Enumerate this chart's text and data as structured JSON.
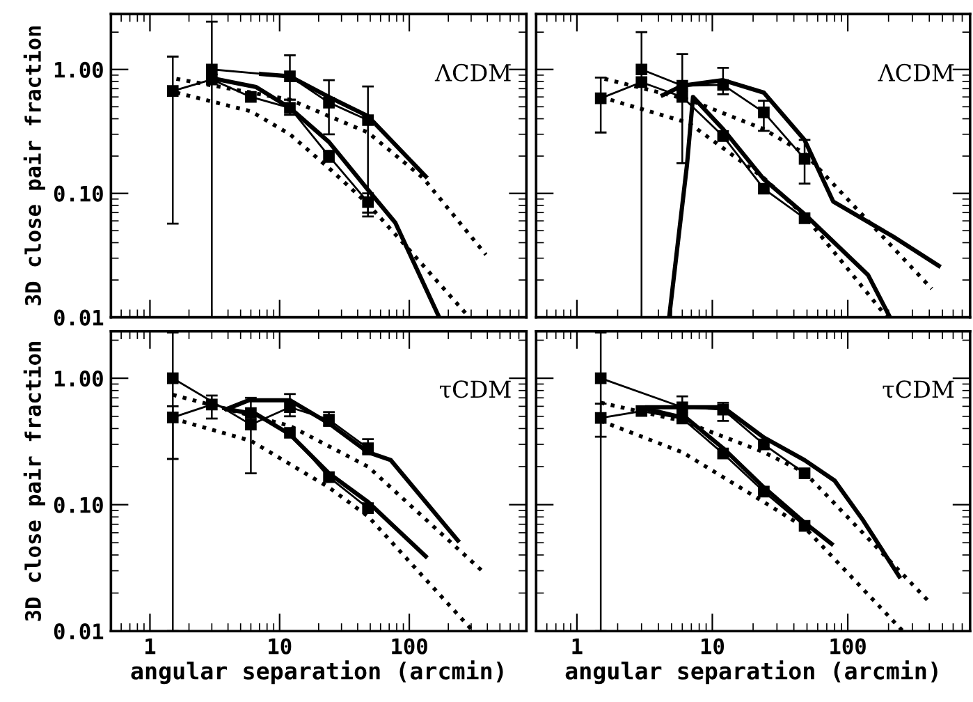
{
  "chart_data": [
    {
      "type": "line",
      "ylabel": "3D close pair fraction",
      "annotations": [
        "ΛCDM"
      ],
      "log": "xy",
      "xlim": [
        0.5,
        800
      ],
      "ylim": [
        0.01,
        2.8
      ],
      "xticks": [
        {
          "value": 1,
          "label": null
        },
        {
          "value": 10,
          "label": null
        },
        {
          "value": 100,
          "label": null
        }
      ],
      "yticks": [
        {
          "value": 0.01,
          "label": "0.01"
        },
        {
          "value": 0.1,
          "label": "0.10"
        },
        {
          "value": 1,
          "label": "1.00"
        }
      ],
      "tick_labels": "y",
      "grid": false,
      "legend": false,
      "series": [
        {
          "color": "#000000",
          "marker": "square",
          "x": [
            1.5,
            3,
            6,
            12,
            24,
            48
          ],
          "values": [
            0.67,
            0.83,
            0.6,
            0.49,
            0.2,
            0.085
          ],
          "errors": [
            [
              0.057,
              1.27
            ],
            null,
            null,
            [
              0.43,
              0.57
            ],
            [
              0.18,
              0.22
            ],
            [
              0.07,
              0.1
            ]
          ]
        },
        {
          "color": "#000000",
          "marker": "square",
          "x": [
            3,
            12,
            24,
            48
          ],
          "values": [
            1.0,
            0.88,
            0.54,
            0.39
          ],
          "errors": [
            [
              0.01,
              2.43
            ],
            [
              0.57,
              1.3
            ],
            [
              0.3,
              0.82
            ],
            [
              0.065,
              0.73
            ]
          ]
        },
        {
          "color": "#000000",
          "marker": "none",
          "x": [
            7.2,
            12,
            24,
            48,
            134
          ],
          "values": [
            0.92,
            0.88,
            0.6,
            0.42,
            0.137
          ]
        },
        {
          "color": "#000000",
          "marker": "none",
          "x": [
            3,
            6.6,
            12,
            24,
            48,
            78,
            170
          ],
          "values": [
            0.85,
            0.72,
            0.49,
            0.26,
            0.107,
            0.058,
            0.01
          ]
        },
        {
          "color": "#000000",
          "marker": "none",
          "line_style": "dotted",
          "x": [
            1.6,
            12,
            48,
            128,
            390
          ],
          "values": [
            0.84,
            0.57,
            0.31,
            0.133,
            0.032
          ]
        },
        {
          "color": "#000000",
          "marker": "none",
          "line_style": "dotted",
          "x": [
            1.6,
            6,
            12,
            24,
            48,
            100,
            290
          ],
          "values": [
            0.65,
            0.46,
            0.3,
            0.16,
            0.082,
            0.035,
            0.01
          ]
        }
      ]
    },
    {
      "type": "line",
      "annotations": [
        "ΛCDM"
      ],
      "log": "xy",
      "xlim": [
        0.5,
        800
      ],
      "ylim": [
        0.01,
        2.8
      ],
      "xticks": [
        {
          "value": 1,
          "label": null
        },
        {
          "value": 10,
          "label": null
        },
        {
          "value": 100,
          "label": null
        }
      ],
      "yticks": [
        {
          "value": 0.01,
          "label": null
        },
        {
          "value": 0.1,
          "label": null
        },
        {
          "value": 1,
          "label": null
        }
      ],
      "tick_labels": false,
      "grid": false,
      "legend": false,
      "series": [
        {
          "color": "#000000",
          "marker": "square",
          "x": [
            1.5,
            3,
            6,
            12,
            24,
            48
          ],
          "values": [
            0.585,
            0.79,
            0.6,
            0.29,
            0.109,
            0.063
          ],
          "errors": [
            [
              0.31,
              0.86
            ],
            null,
            null,
            null,
            null,
            null
          ]
        },
        {
          "color": "#000000",
          "marker": "square",
          "x": [
            3,
            6,
            12,
            24,
            48
          ],
          "values": [
            1.0,
            0.74,
            0.75,
            0.45,
            0.19
          ],
          "errors": [
            [
              0.01,
              2.0
            ],
            [
              0.175,
              1.33
            ],
            [
              0.63,
              1.03
            ],
            [
              0.32,
              0.56
            ],
            [
              0.12,
              0.27
            ]
          ]
        },
        {
          "color": "#000000",
          "marker": "none",
          "x": [
            4.3,
            6,
            12,
            24,
            48,
            78,
            215,
            470
          ],
          "values": [
            0.62,
            0.74,
            0.82,
            0.65,
            0.27,
            0.086,
            0.045,
            0.026
          ]
        },
        {
          "color": "#000000",
          "marker": "none",
          "x": [
            4.8,
            6.5,
            7.2,
            12,
            24,
            48,
            141,
            205
          ],
          "values": [
            0.01,
            0.17,
            0.6,
            0.33,
            0.13,
            0.068,
            0.022,
            0.01
          ]
        },
        {
          "color": "#000000",
          "marker": "none",
          "line_style": "dotted",
          "x": [
            1.6,
            6.7,
            24,
            48,
            417
          ],
          "values": [
            0.84,
            0.57,
            0.33,
            0.21,
            0.017
          ]
        },
        {
          "color": "#000000",
          "marker": "none",
          "line_style": "dotted",
          "x": [
            1.5,
            6.7,
            24,
            48,
            195
          ],
          "values": [
            0.6,
            0.37,
            0.133,
            0.066,
            0.01
          ]
        }
      ]
    },
    {
      "type": "line",
      "xlabel": "angular separation (arcmin)",
      "ylabel": "3D close pair fraction",
      "annotations": [
        "τCDM"
      ],
      "log": "xy",
      "xlim": [
        0.5,
        800
      ],
      "ylim": [
        0.01,
        2.35
      ],
      "xticks": [
        1,
        10,
        100
      ],
      "yticks": [
        {
          "value": 0.01,
          "label": "0.01"
        },
        {
          "value": 0.1,
          "label": "0.10"
        },
        {
          "value": 1,
          "label": "1.00"
        }
      ],
      "grid": false,
      "legend": false,
      "series": [
        {
          "color": "#000000",
          "marker": "square",
          "x": [
            1.5,
            3,
            6,
            12,
            24,
            48
          ],
          "values": [
            0.49,
            0.62,
            0.53,
            0.37,
            0.165,
            0.094
          ],
          "errors": [
            [
              0.23,
              0.6
            ],
            [
              0.48,
              0.73
            ],
            null,
            null,
            null,
            null
          ]
        },
        {
          "color": "#000000",
          "marker": "square",
          "x": [
            1.5,
            6,
            12,
            24,
            48
          ],
          "values": [
            1.0,
            0.43,
            0.59,
            0.47,
            0.28
          ],
          "errors": [
            [
              0.01,
              2.3
            ],
            [
              0.177,
              0.7
            ],
            [
              0.5,
              0.75
            ],
            [
              0.42,
              0.54
            ],
            [
              0.25,
              0.33
            ]
          ]
        },
        {
          "color": "#000000",
          "marker": "none",
          "x": [
            3.9,
            5.8,
            12,
            24,
            48,
            72,
            237
          ],
          "values": [
            0.57,
            0.67,
            0.67,
            0.44,
            0.26,
            0.225,
            0.052
          ]
        },
        {
          "color": "#000000",
          "marker": "none",
          "x": [
            3.9,
            6.6,
            12,
            24,
            48,
            134
          ],
          "values": [
            0.57,
            0.52,
            0.36,
            0.177,
            0.105,
            0.039
          ]
        },
        {
          "color": "#000000",
          "marker": "none",
          "line_style": "dotted",
          "x": [
            1.5,
            12,
            48,
            377
          ],
          "values": [
            0.74,
            0.42,
            0.2,
            0.029
          ]
        },
        {
          "color": "#000000",
          "marker": "none",
          "line_style": "dotted",
          "x": [
            1.5,
            6,
            24,
            48,
            310
          ],
          "values": [
            0.48,
            0.32,
            0.137,
            0.081,
            0.01
          ]
        }
      ]
    },
    {
      "type": "line",
      "xlabel": "angular separation (arcmin)",
      "annotations": [
        "τCDM"
      ],
      "log": "xy",
      "xlim": [
        0.5,
        800
      ],
      "ylim": [
        0.01,
        2.35
      ],
      "xticks": [
        1,
        10,
        100
      ],
      "yticks": [
        {
          "value": 0.01,
          "label": null
        },
        {
          "value": 0.1,
          "label": null
        },
        {
          "value": 1,
          "label": null
        }
      ],
      "tick_labels": "x",
      "grid": false,
      "legend": false,
      "series": [
        {
          "color": "#000000",
          "marker": "square",
          "x": [
            1.5,
            3,
            6,
            12,
            24,
            48
          ],
          "values": [
            0.485,
            0.55,
            0.48,
            0.254,
            0.127,
            0.068
          ],
          "errors": [
            [
              0.345,
              0.63
            ],
            null,
            null,
            null,
            null,
            null
          ]
        },
        {
          "color": "#000000",
          "marker": "square",
          "x": [
            1.5,
            6,
            12,
            24,
            48
          ],
          "values": [
            1.0,
            0.59,
            0.565,
            0.3,
            0.177
          ],
          "errors": [
            [
              0.01,
              2.3
            ],
            [
              0.46,
              0.72
            ],
            [
              0.46,
              0.64
            ],
            null,
            null
          ]
        },
        {
          "color": "#000000",
          "marker": "none",
          "x": [
            3.3,
            12,
            24,
            48,
            80,
            130,
            240
          ],
          "values": [
            0.59,
            0.59,
            0.34,
            0.225,
            0.155,
            0.075,
            0.027
          ]
        },
        {
          "color": "#000000",
          "marker": "none",
          "x": [
            3.3,
            6.5,
            12,
            24,
            48,
            76
          ],
          "values": [
            0.57,
            0.48,
            0.28,
            0.137,
            0.072,
            0.049
          ]
        },
        {
          "color": "#000000",
          "marker": "none",
          "line_style": "dotted",
          "x": [
            1.5,
            6,
            24,
            48,
            400
          ],
          "values": [
            0.64,
            0.46,
            0.26,
            0.18,
            0.017
          ]
        },
        {
          "color": "#000000",
          "marker": "none",
          "line_style": "dotted",
          "x": [
            1.5,
            6,
            24,
            48,
            255
          ],
          "values": [
            0.46,
            0.26,
            0.105,
            0.066,
            0.01
          ]
        }
      ]
    }
  ]
}
